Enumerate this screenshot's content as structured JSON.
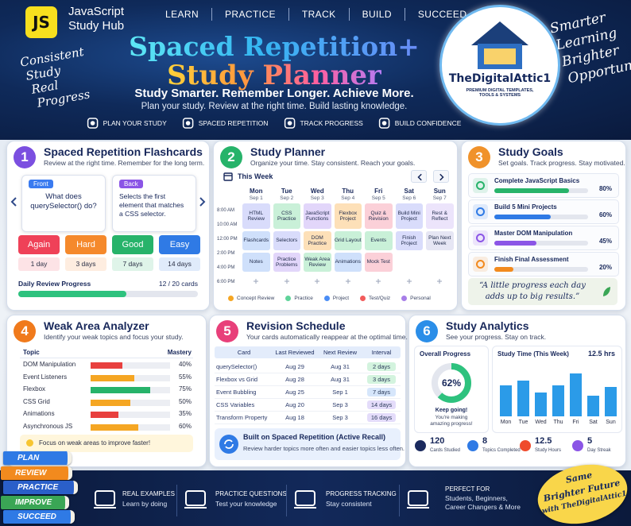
{
  "header": {
    "logo": "JS",
    "brand": [
      "JavaScript",
      "Study Hub"
    ],
    "nav": [
      "LEARN",
      "PRACTICE",
      "TRACK",
      "BUILD",
      "SUCCEED"
    ],
    "title": [
      "Spaced Repetition+",
      "Study Planner"
    ],
    "tagline": "Study Smarter. Remember Longer. Achieve More.",
    "subtagline": "Plan your study. Review at the right time. Build lasting knowledge.",
    "features": [
      "PLAN YOUR STUDY",
      "SPACED REPETITION",
      "TRACK PROGRESS",
      "BUILD CONFIDENCE"
    ],
    "left_script": [
      "Consistent",
      "Study",
      "Real",
      "Progress"
    ],
    "right_script": [
      "Smarter",
      "Learning",
      "Brighter",
      "Opportunities"
    ],
    "badge": {
      "name": "TheDigitalAttic1",
      "tagline": "PREMIUM DIGITAL TEMPLATES, TOOLS & SYSTEMS"
    }
  },
  "flashcards": {
    "number": "1",
    "accent": "#7b4fe0",
    "title": "Spaced Repetition Flashcards",
    "subtitle": "Review at the right time. Remember for the long term.",
    "front": {
      "label": "Front",
      "text": "What does querySelector() do?"
    },
    "back": {
      "label": "Back",
      "text": "Selects the first element that matches a CSS selector."
    },
    "ratings": [
      {
        "label": "Again",
        "interval": "1 day",
        "color": "#ef4158"
      },
      {
        "label": "Hard",
        "interval": "3 days",
        "color": "#f5892c"
      },
      {
        "label": "Good",
        "interval": "7 days",
        "color": "#27b36a"
      },
      {
        "label": "Easy",
        "interval": "14 days",
        "color": "#2f7ae5"
      }
    ],
    "progress": {
      "label": "Daily Review Progress",
      "done": 12,
      "total": 20,
      "text": "12 / 20 cards"
    }
  },
  "planner": {
    "number": "2",
    "accent": "#27b36a",
    "title": "Study Planner",
    "subtitle": "Organize your time. Stay consistent. Reach your goals.",
    "week": "This Week",
    "days": [
      {
        "name": "Mon",
        "date": "Sep 1"
      },
      {
        "name": "Tue",
        "date": "Sep 2"
      },
      {
        "name": "Wed",
        "date": "Sep 3"
      },
      {
        "name": "Thu",
        "date": "Sep 4"
      },
      {
        "name": "Fri",
        "date": "Sep 5"
      },
      {
        "name": "Sat",
        "date": "Sep 6"
      },
      {
        "name": "Sun",
        "date": "Sep 7"
      }
    ],
    "times": [
      "8:00 AM",
      "10:00 AM",
      "12:00 PM",
      "2:00 PM",
      "4:00 PM",
      "6:00 PM"
    ],
    "events": [
      [
        {
          "text": "HTML Review",
          "color": "#d9dcfb"
        },
        {
          "text": "CSS Practice",
          "color": "#c9f0d8"
        },
        {
          "text": "JavaScript Functions",
          "color": "#e2d6fa"
        },
        {
          "text": "Flexbox Project",
          "color": "#fde0b8"
        },
        {
          "text": "Quiz & Revision",
          "color": "#fbd0d8"
        },
        {
          "text": "Build Mini Project",
          "color": "#d9dcfb"
        },
        {
          "text": "Rest & Reflect",
          "color": "#ece4fb"
        }
      ],
      [
        {
          "text": "Flashcards",
          "color": "#cfe0fb"
        },
        {
          "text": "Selectors",
          "color": "#d9dcfb"
        },
        {
          "text": "DOM Practice",
          "color": "#fde0b8"
        },
        {
          "text": "Grid Layout",
          "color": "#c9f0d8"
        },
        {
          "text": "Events",
          "color": "#c9f0d8"
        },
        {
          "text": "Finish Project",
          "color": "#d9dcfb"
        },
        {
          "text": "Plan Next Week",
          "color": "#e6e6f4"
        }
      ],
      [
        {
          "text": "Notes",
          "color": "#cfe0fb"
        },
        {
          "text": "Practice Problems",
          "color": "#e2d6fa"
        },
        {
          "text": "Weak Area Review",
          "color": "#c9f0d8"
        },
        {
          "text": "Animations",
          "color": "#cfe0fb"
        },
        {
          "text": "Mock Test",
          "color": "#fbd0d8"
        }
      ]
    ],
    "legend": [
      {
        "name": "Concept Review",
        "color": "#f5a623"
      },
      {
        "name": "Practice",
        "color": "#5fd39a"
      },
      {
        "name": "Project",
        "color": "#4a8df6"
      },
      {
        "name": "Test/Quiz",
        "color": "#f25b5b"
      },
      {
        "name": "Personal",
        "color": "#a77ee8"
      }
    ]
  },
  "goals": {
    "number": "3",
    "accent": "#f0922b",
    "title": "Study Goals",
    "subtitle": "Set goals. Track progress. Stay motivated.",
    "items": [
      {
        "name": "Complete JavaScript Basics",
        "percent": {
          "value": 80,
          "label": "80%"
        },
        "color": "#27b36a"
      },
      {
        "name": "Build 5 Mini Projects",
        "percent": {
          "value": 60,
          "label": "60%"
        },
        "color": "#2f7ae5"
      },
      {
        "name": "Master DOM Manipulation",
        "percent": {
          "value": 45,
          "label": "45%"
        },
        "color": "#8b55e6"
      },
      {
        "name": "Finish Final Assessment",
        "percent": {
          "value": 20,
          "label": "20%"
        },
        "color": "#f28a1e"
      }
    ],
    "quote": "“A little progress each day adds up to big results.”"
  },
  "weak": {
    "number": "4",
    "accent": "#f07a1c",
    "title": "Weak Area Analyzer",
    "subtitle": "Identify your weak topics and focus your study.",
    "columns": [
      "Topic",
      "Mastery"
    ],
    "rows": [
      {
        "topic": "DOM Manipulation",
        "mastery": {
          "value": 40,
          "label": "40%"
        },
        "color": "#e8403e"
      },
      {
        "topic": "Event Listeners",
        "mastery": {
          "value": 55,
          "label": "55%"
        },
        "color": "#f5a623"
      },
      {
        "topic": "Flexbox",
        "mastery": {
          "value": 75,
          "label": "75%"
        },
        "color": "#27b36a"
      },
      {
        "topic": "CSS Grid",
        "mastery": {
          "value": 50,
          "label": "50%"
        },
        "color": "#f5a623"
      },
      {
        "topic": "Animations",
        "mastery": {
          "value": 35,
          "label": "35%"
        },
        "color": "#e8403e"
      },
      {
        "topic": "Asynchronous JS",
        "mastery": {
          "value": 60,
          "label": "60%"
        },
        "color": "#f5a623"
      }
    ],
    "tip": "Focus on weak areas to improve faster!"
  },
  "revision": {
    "number": "5",
    "accent": "#e8407a",
    "title": "Revision Schedule",
    "subtitle": "Your cards automatically reappear at the optimal time.",
    "columns": [
      "Card",
      "Last Reviewed",
      "Next Review",
      "Interval"
    ],
    "rows": [
      {
        "card": "querySelector()",
        "last": "Aug 29",
        "next": "Aug 31",
        "interval": "2 days",
        "color": "#d3f3de"
      },
      {
        "card": "Flexbox vs Grid",
        "last": "Aug 28",
        "next": "Aug 31",
        "interval": "3 days",
        "color": "#d3f3de"
      },
      {
        "card": "Event Bubbling",
        "last": "Aug 25",
        "next": "Sep 1",
        "interval": "7 days",
        "color": "#d6e6fb"
      },
      {
        "card": "CSS Variables",
        "last": "Aug 20",
        "next": "Sep 3",
        "interval": "14 days",
        "color": "#e4dcfa"
      },
      {
        "card": "Transform Property",
        "last": "Aug 18",
        "next": "Sep 3",
        "interval": "16 days",
        "color": "#e4dcfa"
      }
    ],
    "note": {
      "title": "Built on Spaced Repetition (Active Recall)",
      "text": "Review harder topics more often and easier topics less often."
    }
  },
  "analytics": {
    "number": "6",
    "accent": "#2b8ee8",
    "title": "Study Analytics",
    "subtitle": "See your progress. Stay on track.",
    "overall": {
      "title": "Overall Progress",
      "value": 62,
      "label": "62%",
      "message": "Keep going!",
      "detail": "You're making amazing progress!",
      "color": "#2ec27e"
    },
    "study_time": {
      "title": "Study Time (This Week)",
      "total": "12.5 hrs",
      "days": [
        "Mon",
        "Tue",
        "Wed",
        "Thu",
        "Fri",
        "Sat",
        "Sun"
      ],
      "hours": [
        1.8,
        2.1,
        1.4,
        1.8,
        2.5,
        1.2,
        1.7
      ],
      "color": "#2b9be8"
    },
    "stats": [
      {
        "value": 120,
        "label": "Cards Studied",
        "color": "#1b2a5e"
      },
      {
        "value": 8,
        "label": "Topics Completed",
        "color": "#2f7ae5"
      },
      {
        "value": 12.5,
        "label": "Study Hours",
        "color": "#ef4b2c"
      },
      {
        "value": 5,
        "label": "Day Streak",
        "color": "#8b55e6"
      }
    ]
  },
  "footer": {
    "books": [
      {
        "name": "PLAN",
        "color": "#2f7ae5"
      },
      {
        "name": "REVIEW",
        "color": "#f28a1e"
      },
      {
        "name": "PRACTICE",
        "color": "#2a5fc9"
      },
      {
        "name": "IMPROVE",
        "color": "#3aa655"
      },
      {
        "name": "SUCCEED",
        "color": "#2f7ae5"
      }
    ],
    "features": [
      {
        "title": "REAL EXAMPLES",
        "text": "Learn by doing"
      },
      {
        "title": "PRACTICE QUESTIONS",
        "text": "Test your knowledge"
      },
      {
        "title": "PROGRESS TRACKING",
        "text": "Stay consistent"
      },
      {
        "title": "PERFECT FOR",
        "text": "Students, Beginners, Career Changers & More"
      }
    ],
    "stamp": [
      "Same",
      "Brighter Future",
      "with TheDigitalAttic1"
    ]
  }
}
